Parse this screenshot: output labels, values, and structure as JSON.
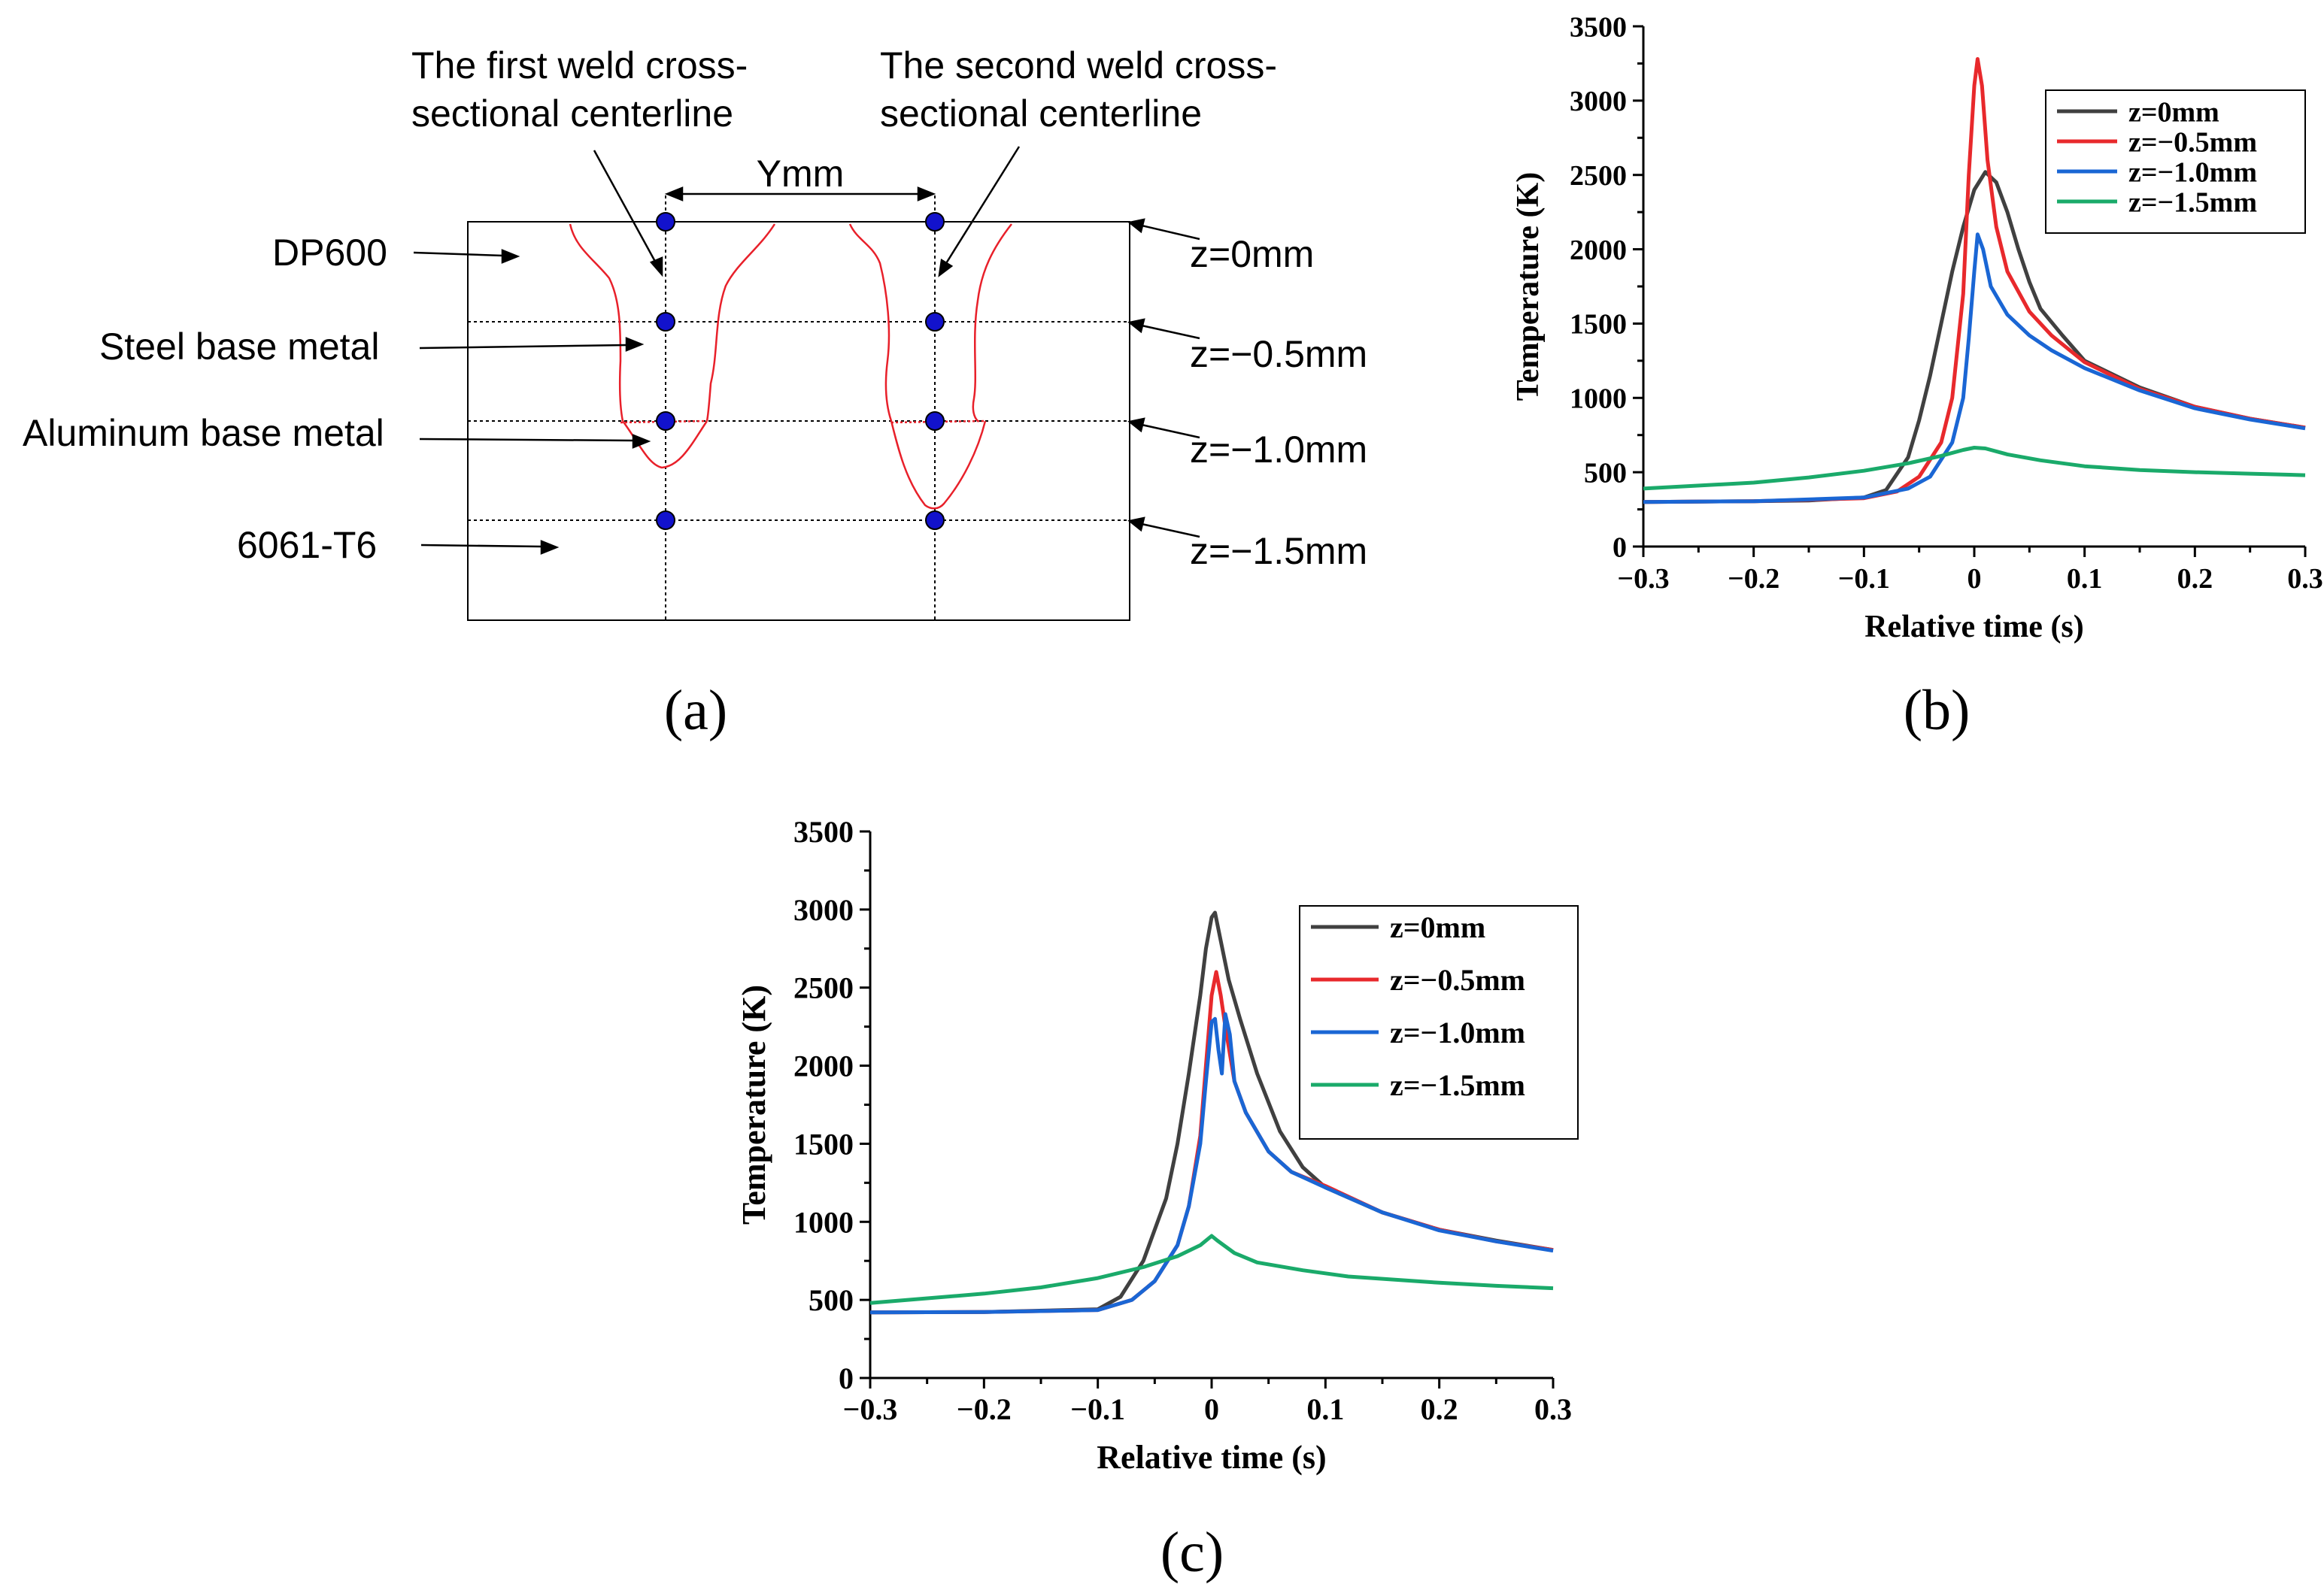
{
  "panels": {
    "a": {
      "label": "(a)",
      "labels_left": [
        "DP600",
        "Steel base metal",
        "Aluminum base metal",
        "6061-T6"
      ],
      "top_annotations": {
        "first": [
          "The first weld cross-",
          "sectional centerline"
        ],
        "second": [
          "The second weld cross-",
          "sectional centerline"
        ]
      },
      "spacing_label": "Ymm",
      "z_labels": [
        "z=0mm",
        "z=−0.5mm",
        "z=−1.0mm",
        "z=−1.5mm"
      ],
      "colors": {
        "weld_outline": "#e8202a",
        "point": "#1212cc"
      }
    },
    "b": {
      "label": "(b)"
    },
    "c": {
      "label": "(c)"
    }
  },
  "chart_data": [
    {
      "id": "b",
      "type": "line",
      "title": "",
      "xlabel": "Relative time (s)",
      "ylabel": "Temperature (K)",
      "xlim": [
        -0.3,
        0.3
      ],
      "ylim": [
        0,
        3500
      ],
      "xticks": [
        -0.3,
        -0.2,
        -0.1,
        0,
        0.1,
        0.2,
        0.3
      ],
      "xtick_labels": [
        "−0.3",
        "−0.2",
        "−0.1",
        "0",
        "0.1",
        "0.2",
        "0.3"
      ],
      "yticks": [
        0,
        500,
        1000,
        1500,
        2000,
        2500,
        3000,
        3500
      ],
      "ytick_labels": [
        "0",
        "500",
        "1000",
        "1500",
        "2000",
        "2500",
        "3000",
        "3500"
      ],
      "legend_position": "top-right",
      "series": [
        {
          "name": "z=0mm",
          "color": "#404040",
          "points": [
            [
              -0.3,
              300
            ],
            [
              -0.2,
              305
            ],
            [
              -0.15,
              310
            ],
            [
              -0.1,
              330
            ],
            [
              -0.08,
              380
            ],
            [
              -0.06,
              600
            ],
            [
              -0.05,
              850
            ],
            [
              -0.04,
              1150
            ],
            [
              -0.03,
              1500
            ],
            [
              -0.02,
              1850
            ],
            [
              -0.01,
              2150
            ],
            [
              0,
              2400
            ],
            [
              0.01,
              2520
            ],
            [
              0.02,
              2450
            ],
            [
              0.03,
              2250
            ],
            [
              0.04,
              2000
            ],
            [
              0.05,
              1780
            ],
            [
              0.06,
              1600
            ],
            [
              0.08,
              1420
            ],
            [
              0.1,
              1250
            ],
            [
              0.15,
              1070
            ],
            [
              0.2,
              940
            ],
            [
              0.25,
              860
            ],
            [
              0.3,
              800
            ]
          ]
        },
        {
          "name": "z=−0.5mm",
          "color": "#e8292c",
          "points": [
            [
              -0.3,
              300
            ],
            [
              -0.2,
              305
            ],
            [
              -0.1,
              325
            ],
            [
              -0.07,
              370
            ],
            [
              -0.05,
              470
            ],
            [
              -0.03,
              700
            ],
            [
              -0.02,
              1000
            ],
            [
              -0.01,
              1700
            ],
            [
              -0.005,
              2500
            ],
            [
              0,
              3100
            ],
            [
              0.003,
              3280
            ],
            [
              0.007,
              3100
            ],
            [
              0.012,
              2600
            ],
            [
              0.02,
              2150
            ],
            [
              0.03,
              1850
            ],
            [
              0.05,
              1580
            ],
            [
              0.07,
              1420
            ],
            [
              0.1,
              1240
            ],
            [
              0.15,
              1060
            ],
            [
              0.2,
              940
            ],
            [
              0.25,
              860
            ],
            [
              0.3,
              800
            ]
          ]
        },
        {
          "name": "z=−1.0mm",
          "color": "#1a66d4",
          "points": [
            [
              -0.3,
              300
            ],
            [
              -0.2,
              305
            ],
            [
              -0.1,
              330
            ],
            [
              -0.06,
              390
            ],
            [
              -0.04,
              470
            ],
            [
              -0.02,
              700
            ],
            [
              -0.01,
              1000
            ],
            [
              -0.005,
              1400
            ],
            [
              0,
              1850
            ],
            [
              0.003,
              2100
            ],
            [
              0.008,
              2000
            ],
            [
              0.015,
              1750
            ],
            [
              0.03,
              1560
            ],
            [
              0.05,
              1420
            ],
            [
              0.07,
              1320
            ],
            [
              0.1,
              1200
            ],
            [
              0.15,
              1050
            ],
            [
              0.2,
              930
            ],
            [
              0.25,
              855
            ],
            [
              0.3,
              795
            ]
          ]
        },
        {
          "name": "z=−1.5mm",
          "color": "#1aaa6a",
          "points": [
            [
              -0.3,
              390
            ],
            [
              -0.2,
              430
            ],
            [
              -0.15,
              465
            ],
            [
              -0.1,
              510
            ],
            [
              -0.06,
              560
            ],
            [
              -0.03,
              610
            ],
            [
              -0.01,
              650
            ],
            [
              0,
              665
            ],
            [
              0.01,
              660
            ],
            [
              0.03,
              620
            ],
            [
              0.06,
              580
            ],
            [
              0.1,
              540
            ],
            [
              0.15,
              515
            ],
            [
              0.2,
              500
            ],
            [
              0.25,
              490
            ],
            [
              0.3,
              480
            ]
          ]
        }
      ]
    },
    {
      "id": "c",
      "type": "line",
      "title": "",
      "xlabel": "Relative time (s)",
      "ylabel": "Temperature (K)",
      "xlim": [
        -0.3,
        0.3
      ],
      "ylim": [
        0,
        3500
      ],
      "xticks": [
        -0.3,
        -0.2,
        -0.1,
        0,
        0.1,
        0.2,
        0.3
      ],
      "xtick_labels": [
        "−0.3",
        "−0.2",
        "−0.1",
        "0",
        "0.1",
        "0.2",
        "0.3"
      ],
      "yticks": [
        0,
        500,
        1000,
        1500,
        2000,
        2500,
        3000,
        3500
      ],
      "ytick_labels": [
        "0",
        "500",
        "1000",
        "1500",
        "2000",
        "2500",
        "3000",
        "3500"
      ],
      "legend_position": "top-right",
      "series": [
        {
          "name": "z=0mm",
          "color": "#404040",
          "points": [
            [
              -0.3,
              420
            ],
            [
              -0.2,
              422
            ],
            [
              -0.1,
              440
            ],
            [
              -0.08,
              520
            ],
            [
              -0.06,
              750
            ],
            [
              -0.04,
              1150
            ],
            [
              -0.03,
              1500
            ],
            [
              -0.02,
              1950
            ],
            [
              -0.01,
              2450
            ],
            [
              -0.005,
              2750
            ],
            [
              0,
              2950
            ],
            [
              0.003,
              2980
            ],
            [
              0.008,
              2800
            ],
            [
              0.015,
              2550
            ],
            [
              0.025,
              2300
            ],
            [
              0.04,
              1950
            ],
            [
              0.06,
              1580
            ],
            [
              0.08,
              1350
            ],
            [
              0.1,
              1220
            ],
            [
              0.15,
              1060
            ],
            [
              0.2,
              950
            ],
            [
              0.25,
              880
            ],
            [
              0.3,
              820
            ]
          ]
        },
        {
          "name": "z=−0.5mm",
          "color": "#e8292c",
          "points": [
            [
              -0.3,
              420
            ],
            [
              -0.2,
              422
            ],
            [
              -0.1,
              435
            ],
            [
              -0.07,
              500
            ],
            [
              -0.05,
              620
            ],
            [
              -0.03,
              850
            ],
            [
              -0.02,
              1100
            ],
            [
              -0.01,
              1550
            ],
            [
              -0.005,
              2000
            ],
            [
              0,
              2450
            ],
            [
              0.004,
              2600
            ],
            [
              0.008,
              2450
            ],
            [
              0.012,
              2250
            ],
            [
              0.02,
              1900
            ],
            [
              0.03,
              1700
            ],
            [
              0.05,
              1450
            ],
            [
              0.07,
              1320
            ],
            [
              0.1,
              1230
            ],
            [
              0.15,
              1060
            ],
            [
              0.2,
              950
            ],
            [
              0.25,
              875
            ],
            [
              0.3,
              820
            ]
          ]
        },
        {
          "name": "z=−1.0mm",
          "color": "#1a66d4",
          "points": [
            [
              -0.3,
              420
            ],
            [
              -0.2,
              422
            ],
            [
              -0.1,
              435
            ],
            [
              -0.07,
              500
            ],
            [
              -0.05,
              620
            ],
            [
              -0.03,
              850
            ],
            [
              -0.02,
              1100
            ],
            [
              -0.01,
              1500
            ],
            [
              -0.005,
              1900
            ],
            [
              0,
              2280
            ],
            [
              0.003,
              2300
            ],
            [
              0.006,
              2100
            ],
            [
              0.009,
              1950
            ],
            [
              0.012,
              2330
            ],
            [
              0.016,
              2200
            ],
            [
              0.02,
              1900
            ],
            [
              0.03,
              1700
            ],
            [
              0.05,
              1450
            ],
            [
              0.07,
              1320
            ],
            [
              0.1,
              1220
            ],
            [
              0.15,
              1060
            ],
            [
              0.2,
              945
            ],
            [
              0.25,
              875
            ],
            [
              0.3,
              815
            ]
          ]
        },
        {
          "name": "z=−1.5mm",
          "color": "#1aaa6a",
          "points": [
            [
              -0.3,
              480
            ],
            [
              -0.2,
              540
            ],
            [
              -0.15,
              580
            ],
            [
              -0.1,
              640
            ],
            [
              -0.06,
              710
            ],
            [
              -0.03,
              780
            ],
            [
              -0.01,
              850
            ],
            [
              0,
              910
            ],
            [
              0.005,
              880
            ],
            [
              0.02,
              800
            ],
            [
              0.04,
              740
            ],
            [
              0.08,
              690
            ],
            [
              0.12,
              650
            ],
            [
              0.2,
              610
            ],
            [
              0.25,
              590
            ],
            [
              0.3,
              575
            ]
          ]
        }
      ]
    }
  ]
}
